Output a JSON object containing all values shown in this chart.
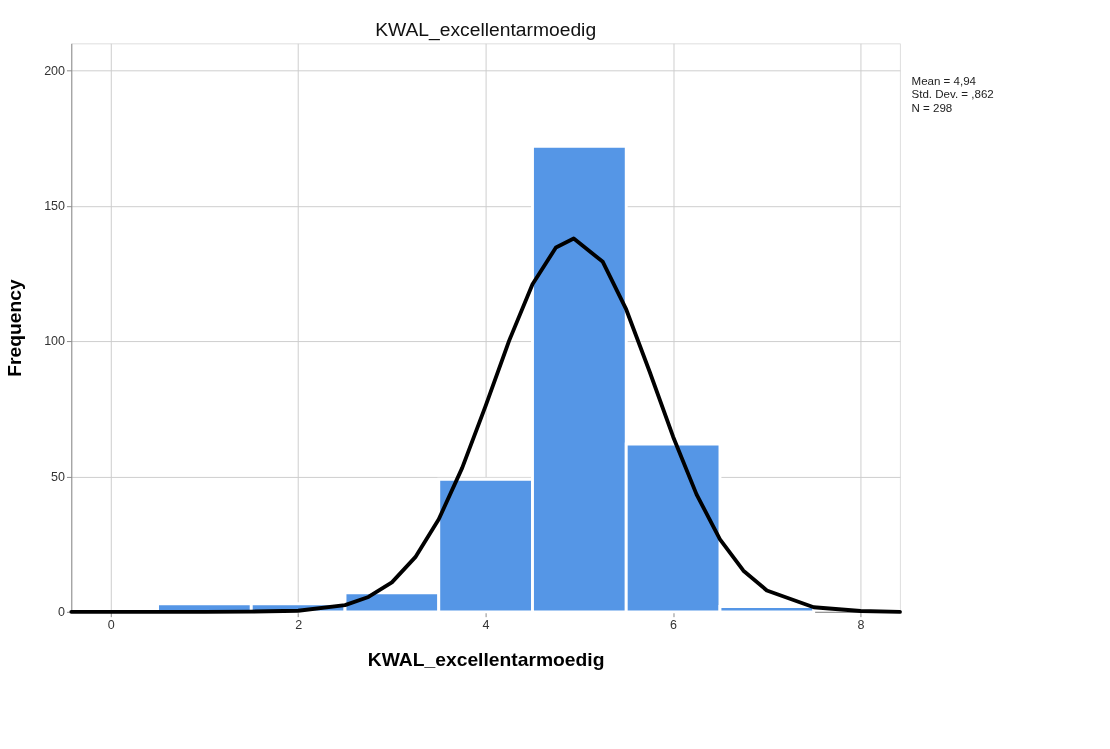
{
  "chart_data": {
    "type": "histogram",
    "title": "KWAL_excellentarmoedig",
    "xlabel": "KWAL_excellentarmoedig",
    "ylabel": "Frequency",
    "bins": [
      0.5,
      1.5,
      2.5,
      3.5,
      4.5,
      5.5,
      6.5,
      7.5
    ],
    "values": [
      3,
      3,
      7,
      49,
      172,
      62,
      2
    ],
    "color": "#5596e6",
    "series": [
      {
        "type": "line",
        "color": "#000000",
        "x": [
          -0.42,
          1,
          1.5,
          2,
          2.5,
          2.75,
          3,
          3.25,
          3.5,
          3.75,
          4,
          4.25,
          4.5,
          4.75,
          4.94,
          5.25,
          5.5,
          5.75,
          6,
          6.25,
          6.5,
          6.75,
          7,
          7.5,
          8,
          8.42
        ],
        "values": [
          0,
          0,
          0.1,
          0.4,
          2.5,
          5.5,
          10.9,
          20.2,
          34.2,
          53.2,
          76.1,
          100.1,
          121.0,
          134.6,
          137.9,
          129.3,
          111.7,
          88.7,
          64.7,
          43.4,
          26.8,
          15.2,
          7.9,
          1.7,
          0.3,
          0
        ]
      }
    ],
    "xlim": [
      -0.42,
      8.42
    ],
    "xticks": [
      0,
      2,
      4,
      6,
      8
    ],
    "ylim": [
      0,
      210
    ],
    "yticks": [
      0,
      50,
      100,
      150,
      200
    ],
    "grid": true,
    "annotations": [
      "Mean = 4,94",
      "Std. Dev. = ,862",
      "N = 298"
    ]
  }
}
